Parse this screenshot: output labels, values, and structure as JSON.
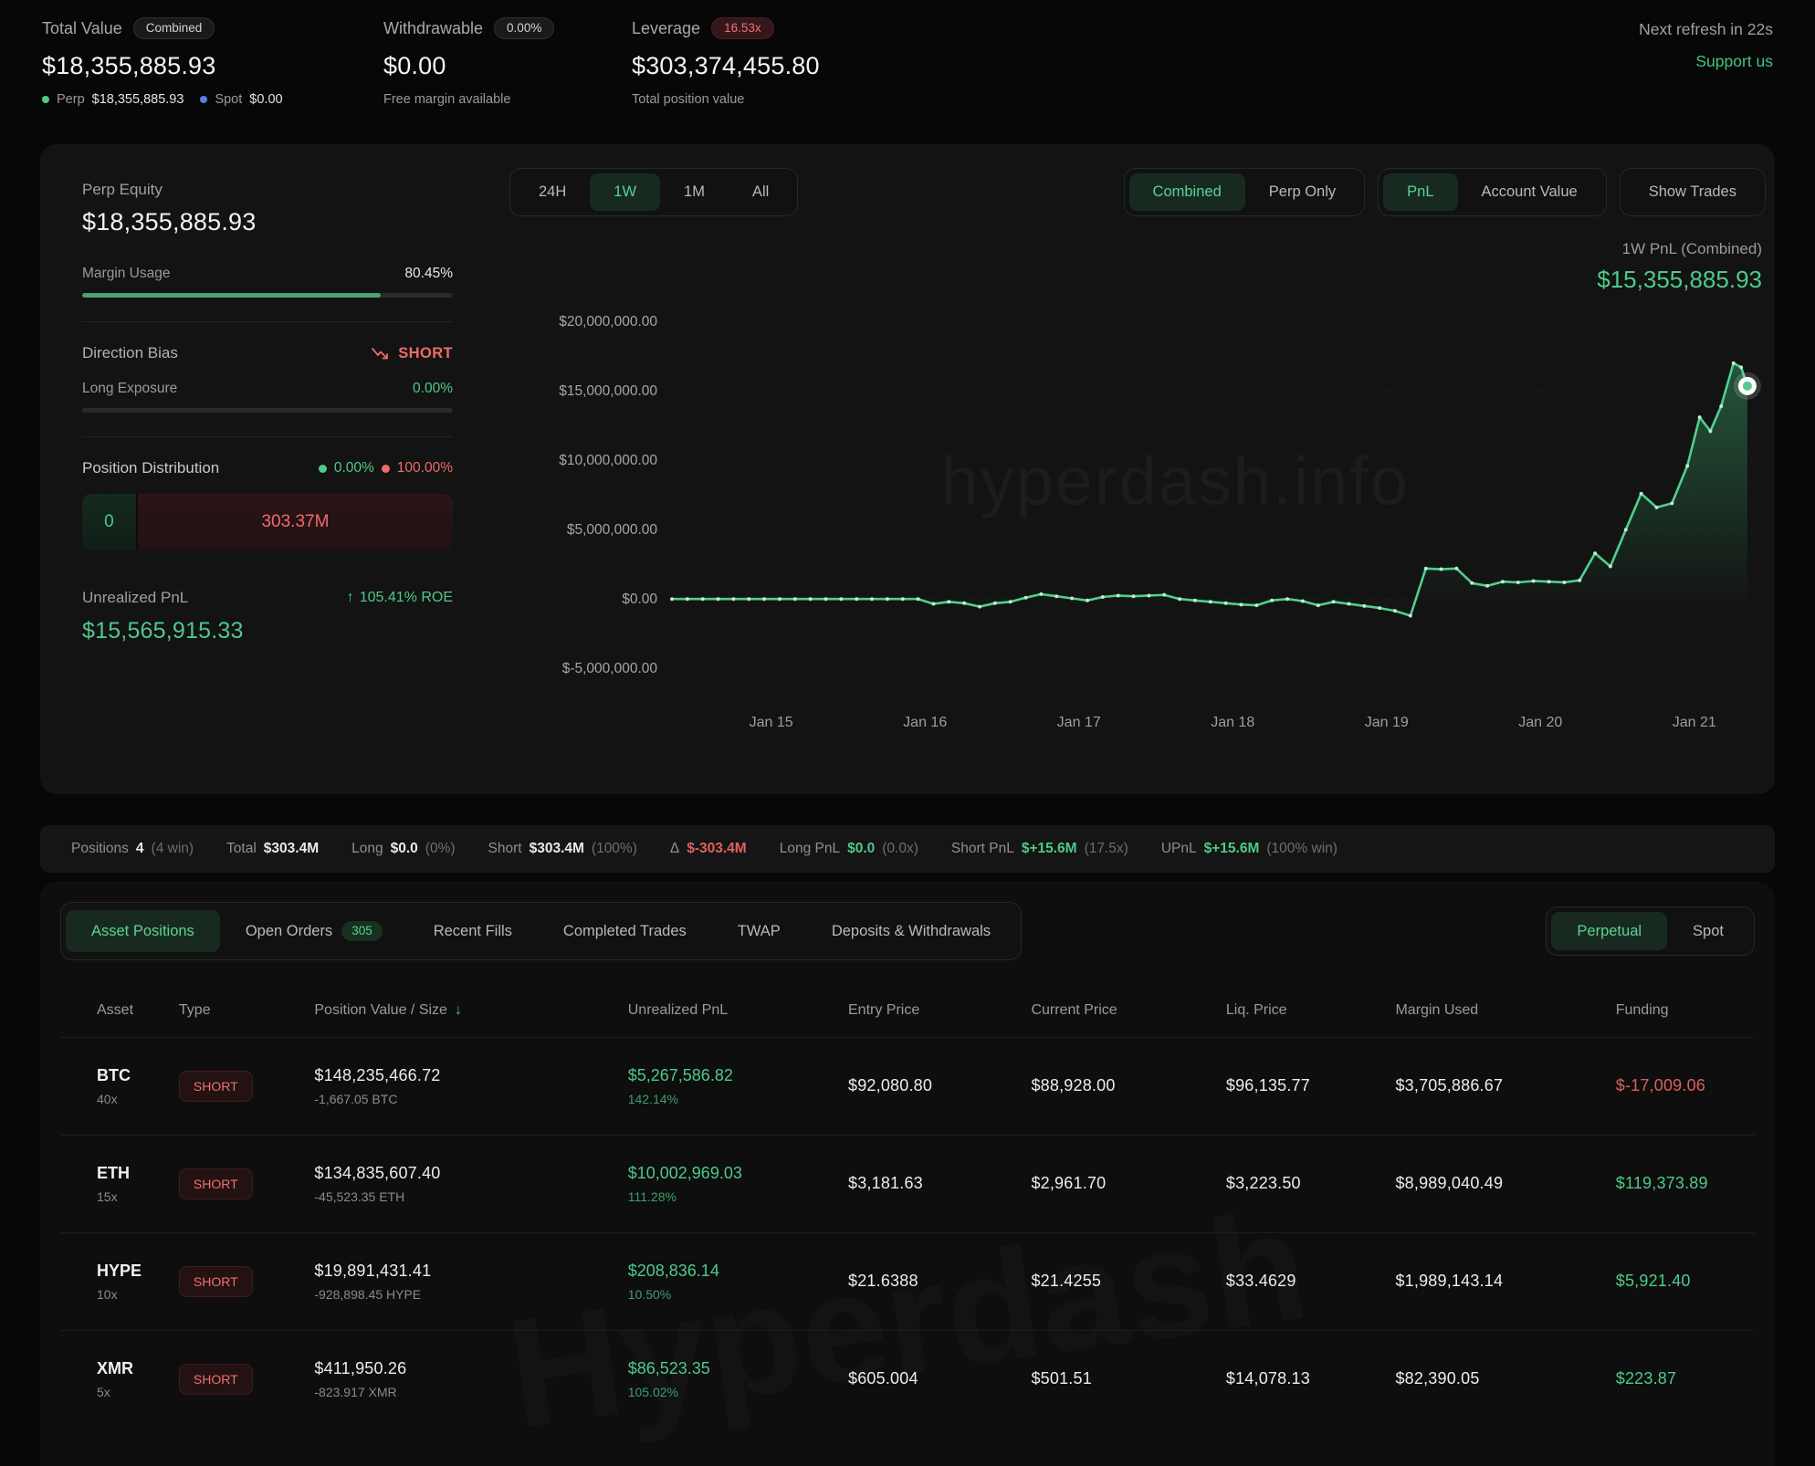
{
  "header": {
    "total_value": {
      "label": "Total Value",
      "badge": "Combined",
      "value": "$18,355,885.93",
      "perp_label": "Perp",
      "perp_value": "$18,355,885.93",
      "spot_label": "Spot",
      "spot_value": "$0.00"
    },
    "withdrawable": {
      "label": "Withdrawable",
      "badge": "0.00%",
      "value": "$0.00",
      "sub": "Free margin available"
    },
    "leverage": {
      "label": "Leverage",
      "badge": "16.53x",
      "value": "$303,374,455.80",
      "sub": "Total position value"
    },
    "refresh": "Next refresh in 22s",
    "support": "Support us"
  },
  "panel": {
    "perp_equity_label": "Perp Equity",
    "perp_equity_value": "$18,355,885.93",
    "margin_usage_label": "Margin Usage",
    "margin_usage_value": "80.45%",
    "margin_usage_pct": 80.45,
    "direction_bias_label": "Direction Bias",
    "direction_bias_value": "SHORT",
    "long_exposure_label": "Long Exposure",
    "long_exposure_value": "0.00%",
    "long_exposure_pct": 0,
    "position_distribution_label": "Position Distribution",
    "long_pct": "0.00%",
    "short_pct": "100.00%",
    "dist_long_value": "0",
    "dist_short_value": "303.37M",
    "unrealized_pnl_label": "Unrealized PnL",
    "roe_value": "105.41% ROE",
    "unrealized_pnl_value": "$15,565,915.33"
  },
  "chart_controls": {
    "ranges": [
      "24H",
      "1W",
      "1M",
      "All"
    ],
    "active_range": "1W",
    "scopes": [
      "Combined",
      "Perp Only"
    ],
    "active_scope": "Combined",
    "modes": [
      "PnL",
      "Account Value"
    ],
    "active_mode": "PnL",
    "show_trades": "Show Trades",
    "title": "1W PnL (Combined)",
    "value": "$15,355,885.93"
  },
  "watermarks": {
    "chart": "hyperdash.info",
    "table": "Hyperdash"
  },
  "chart_data": {
    "type": "area",
    "title": "1W PnL (Combined)",
    "xlabel": "",
    "ylabel": "",
    "x_unit": "days since start",
    "ylim": [
      -6300000,
      21200000
    ],
    "t_max": 7.05,
    "grid": "dotted-horizontal",
    "legend": "none",
    "line_color": "#4fcf8f",
    "y_ticks": [
      {
        "v": 20000000,
        "label": "$20,000,000.00"
      },
      {
        "v": 15000000,
        "label": "$15,000,000.00"
      },
      {
        "v": 10000000,
        "label": "$10,000,000.00"
      },
      {
        "v": 5000000,
        "label": "$5,000,000.00"
      },
      {
        "v": 0,
        "label": "$0.00"
      },
      {
        "v": -5000000,
        "label": "$-5,000,000.00"
      }
    ],
    "x_ticks": [
      {
        "t": 0.645,
        "label": "Jan 15"
      },
      {
        "t": 1.645,
        "label": "Jan 16"
      },
      {
        "t": 2.645,
        "label": "Jan 17"
      },
      {
        "t": 3.645,
        "label": "Jan 18"
      },
      {
        "t": 4.645,
        "label": "Jan 19"
      },
      {
        "t": 5.645,
        "label": "Jan 20"
      },
      {
        "t": 6.645,
        "label": "Jan 21"
      }
    ],
    "series": [
      {
        "name": "PnL (Combined)",
        "t": [
          0,
          0.1,
          0.2,
          0.3,
          0.4,
          0.5,
          0.6,
          0.7,
          0.8,
          0.9,
          1,
          1.1,
          1.2,
          1.3,
          1.4,
          1.5,
          1.6,
          1.7,
          1.8,
          1.9,
          2,
          2.1,
          2.2,
          2.3,
          2.4,
          2.5,
          2.6,
          2.7,
          2.8,
          2.9,
          3,
          3.1,
          3.2,
          3.3,
          3.4,
          3.5,
          3.6,
          3.7,
          3.8,
          3.9,
          4,
          4.1,
          4.2,
          4.3,
          4.4,
          4.5,
          4.6,
          4.7,
          4.8,
          4.9,
          5,
          5.1,
          5.2,
          5.3,
          5.4,
          5.5,
          5.6,
          5.7,
          5.8,
          5.9,
          6,
          6.1,
          6.2,
          6.3,
          6.4,
          6.5,
          6.6,
          6.68,
          6.75,
          6.82,
          6.9,
          6.95,
          6.99
        ],
        "values": [
          0,
          0,
          0,
          0,
          0,
          0,
          0,
          0,
          0,
          0,
          0,
          0,
          0,
          0,
          0,
          0,
          0,
          -350000,
          -200000,
          -300000,
          -550000,
          -300000,
          -200000,
          100000,
          350000,
          200000,
          50000,
          -100000,
          150000,
          250000,
          200000,
          250000,
          300000,
          0,
          -100000,
          -200000,
          -300000,
          -400000,
          -450000,
          -100000,
          0,
          -150000,
          -450000,
          -200000,
          -350000,
          -500000,
          -650000,
          -850000,
          -1200000,
          2200000,
          2150000,
          2200000,
          1150000,
          950000,
          1250000,
          1200000,
          1300000,
          1250000,
          1200000,
          1350000,
          3300000,
          2350000,
          5000000,
          7600000,
          6600000,
          6900000,
          9600000,
          13100000,
          12100000,
          13900000,
          17000000,
          16700000,
          15355885.93
        ]
      }
    ],
    "end_value": 15355885.93
  },
  "summary": {
    "positions_label": "Positions",
    "positions_count": "4",
    "positions_win": "(4 win)",
    "total_label": "Total",
    "total": "$303.4M",
    "long_label": "Long",
    "long": "$0.0",
    "long_pct": "(0%)",
    "short_label": "Short",
    "short": "$303.4M",
    "short_pct": "(100%)",
    "delta_label": "Δ",
    "delta": "$-303.4M",
    "long_pnl_label": "Long PnL",
    "long_pnl": "$0.0",
    "long_pnl_x": "(0.0x)",
    "short_pnl_label": "Short PnL",
    "short_pnl": "$+15.6M",
    "short_pnl_x": "(17.5x)",
    "upnl_label": "UPnL",
    "upnl": "$+15.6M",
    "upnl_win": "(100% win)"
  },
  "tabs": {
    "items": [
      "Asset Positions",
      "Open Orders",
      "Recent Fills",
      "Completed Trades",
      "TWAP",
      "Deposits & Withdrawals"
    ],
    "active": "Asset Positions",
    "open_orders_badge": "305",
    "market_toggle": [
      "Perpetual",
      "Spot"
    ],
    "active_market": "Perpetual"
  },
  "table": {
    "columns": [
      "Asset",
      "Type",
      "Position Value / Size",
      "Unrealized PnL",
      "Entry Price",
      "Current Price",
      "Liq. Price",
      "Margin Used",
      "Funding"
    ],
    "sort_column": "Position Value / Size",
    "rows": [
      {
        "asset": "BTC",
        "leverage": "40x",
        "type": "SHORT",
        "value": "$148,235,466.72",
        "size": "-1,667.05 BTC",
        "upnl": "$5,267,586.82",
        "upnl_pct": "142.14%",
        "entry": "$92,080.80",
        "current": "$88,928.00",
        "liq": "$96,135.77",
        "margin": "$3,705,886.67",
        "funding": "$-17,009.06",
        "funding_negative": true
      },
      {
        "asset": "ETH",
        "leverage": "15x",
        "type": "SHORT",
        "value": "$134,835,607.40",
        "size": "-45,523.35 ETH",
        "upnl": "$10,002,969.03",
        "upnl_pct": "111.28%",
        "entry": "$3,181.63",
        "current": "$2,961.70",
        "liq": "$3,223.50",
        "margin": "$8,989,040.49",
        "funding": "$119,373.89",
        "funding_negative": false
      },
      {
        "asset": "HYPE",
        "leverage": "10x",
        "type": "SHORT",
        "value": "$19,891,431.41",
        "size": "-928,898.45 HYPE",
        "upnl": "$208,836.14",
        "upnl_pct": "10.50%",
        "entry": "$21.6388",
        "current": "$21.4255",
        "liq": "$33.4629",
        "margin": "$1,989,143.14",
        "funding": "$5,921.40",
        "funding_negative": false
      },
      {
        "asset": "XMR",
        "leverage": "5x",
        "type": "SHORT",
        "value": "$411,950.26",
        "size": "-823.917 XMR",
        "upnl": "$86,523.35",
        "upnl_pct": "105.02%",
        "entry": "$605.004",
        "current": "$501.51",
        "liq": "$14,078.13",
        "margin": "$82,390.05",
        "funding": "$223.87",
        "funding_negative": false
      }
    ]
  },
  "colors": {
    "accent_green": "#4fc98c",
    "accent_red": "#ef6b6b",
    "spot_blue": "#5b7fe0",
    "bg": "#060706",
    "card": "#121312"
  }
}
